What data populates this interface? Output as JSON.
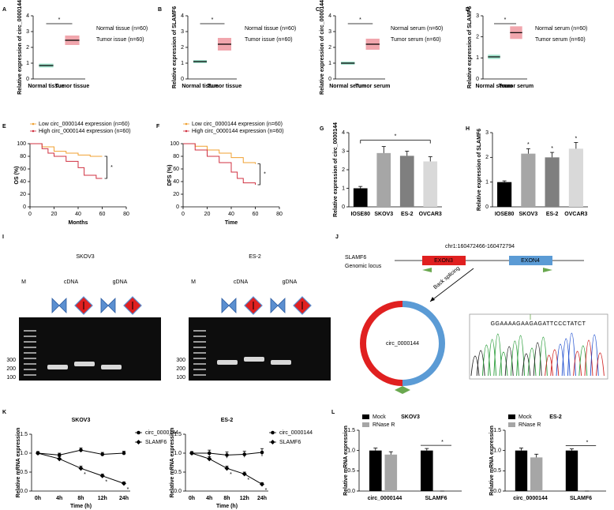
{
  "chart_data": [
    {
      "panel": "A",
      "type": "dot",
      "ylabel": "Relative expression of circ_0000144",
      "categories": [
        "Normal tissue",
        "Tumor tissue"
      ],
      "values": [
        0.85,
        2.45
      ],
      "sd": [
        0.12,
        0.3
      ],
      "colors": [
        "#2fbf8f",
        "#e03a4a"
      ],
      "legend": [
        "Normal tissue (n=60)",
        "Tumor issue (n=60)"
      ],
      "significance": "*",
      "ylim": [
        0,
        4
      ],
      "yticks": [
        0,
        1,
        2,
        3,
        4
      ]
    },
    {
      "panel": "B",
      "type": "dot",
      "ylabel": "Relative expression of SLAMF6",
      "categories": [
        "Normal tissue",
        "Tumor tissue"
      ],
      "values": [
        1.1,
        2.2
      ],
      "sd": [
        0.1,
        0.4
      ],
      "colors": [
        "#2fbf8f",
        "#e03a4a"
      ],
      "legend": [
        "Normal tissue (n=60)",
        "Tumor issue (n=60)"
      ],
      "significance": "*",
      "ylim": [
        0,
        4
      ],
      "yticks": [
        0,
        1,
        2,
        3,
        4
      ]
    },
    {
      "panel": "C",
      "type": "dot",
      "ylabel": "Relative expression of circ_0000144",
      "categories": [
        "Normal serum",
        "Tumor serum"
      ],
      "values": [
        1.0,
        2.2
      ],
      "sd": [
        0.1,
        0.35
      ],
      "colors": [
        "#2fbf8f",
        "#e03a4a"
      ],
      "legend": [
        "Normal serum (n=60)",
        "Tumor serum (n=60)"
      ],
      "significance": "*",
      "ylim": [
        0,
        4
      ],
      "yticks": [
        0,
        1,
        2,
        3,
        4
      ]
    },
    {
      "panel": "D",
      "type": "dot",
      "ylabel": "Relative expression of SLAMF6",
      "categories": [
        "Normal serum",
        "Tumor serum"
      ],
      "values": [
        1.05,
        2.2
      ],
      "sd": [
        0.1,
        0.3
      ],
      "colors": [
        "#2fbf8f",
        "#e03a4a"
      ],
      "legend": [
        "Normal serum (n=60)",
        "Tumor serum (n=60)"
      ],
      "significance": "*",
      "ylim": [
        0,
        3
      ],
      "yticks": [
        0,
        1,
        2,
        3
      ]
    },
    {
      "panel": "E",
      "type": "km",
      "xlabel": "Months",
      "ylabel": "OS (%)",
      "series": [
        {
          "name": "Low circ_0000144 expression (n=60)",
          "color": "#f0a030",
          "x": [
            0,
            10,
            20,
            30,
            40,
            50,
            60
          ],
          "values": [
            100,
            95,
            88,
            85,
            82,
            80,
            80
          ]
        },
        {
          "name": "High circ_0000144 expression (n=60)",
          "color": "#d03040",
          "x": [
            0,
            10,
            15,
            20,
            30,
            40,
            45,
            55,
            60
          ],
          "values": [
            100,
            92,
            85,
            80,
            72,
            62,
            50,
            45,
            45
          ]
        }
      ],
      "significance": "*",
      "xlim": [
        0,
        80
      ],
      "xticks": [
        0,
        20,
        40,
        60,
        80
      ],
      "ylim": [
        0,
        100
      ],
      "yticks": [
        0,
        20,
        40,
        60,
        80,
        100
      ]
    },
    {
      "panel": "F",
      "type": "km",
      "xlabel": "Time",
      "ylabel": "DFS (%)",
      "series": [
        {
          "name": "Low circ_0000144 expression (n=60)",
          "color": "#f0a030",
          "x": [
            0,
            10,
            20,
            30,
            40,
            50,
            60
          ],
          "values": [
            100,
            96,
            90,
            85,
            78,
            70,
            68
          ]
        },
        {
          "name": "High circ_0000144 expression (n=60)",
          "color": "#d03040",
          "x": [
            0,
            10,
            20,
            30,
            40,
            45,
            50,
            60
          ],
          "values": [
            100,
            90,
            80,
            70,
            55,
            45,
            38,
            35
          ]
        }
      ],
      "significance": "*",
      "xlim": [
        0,
        80
      ],
      "xticks": [
        0,
        20,
        40,
        60,
        80
      ],
      "ylim": [
        0,
        100
      ],
      "yticks": [
        0,
        20,
        40,
        60,
        80,
        100
      ]
    },
    {
      "panel": "G",
      "type": "bar",
      "ylabel": "Relative expression of circ_0000144",
      "categories": [
        "IOSE80",
        "SKOV3",
        "ES-2",
        "OVCAR3"
      ],
      "values": [
        1.0,
        2.9,
        2.75,
        2.45
      ],
      "errors": [
        0.1,
        0.35,
        0.25,
        0.25
      ],
      "colors": [
        "#000000",
        "#a6a6a6",
        "#7f7f7f",
        "#d9d9d9"
      ],
      "significance": "*",
      "ylim": [
        0,
        4
      ],
      "yticks": [
        0,
        1,
        2,
        3,
        4
      ]
    },
    {
      "panel": "H",
      "type": "bar",
      "ylabel": "Relative expression of SLAMF6",
      "categories": [
        "IOSE80",
        "SKOV3",
        "ES-2",
        "OVCAR3"
      ],
      "values": [
        1.0,
        2.15,
        2.0,
        2.35
      ],
      "errors": [
        0.05,
        0.2,
        0.2,
        0.25
      ],
      "colors": [
        "#000000",
        "#a6a6a6",
        "#7f7f7f",
        "#d9d9d9"
      ],
      "annotations": [
        "*",
        "*",
        "*"
      ],
      "ylim": [
        0,
        3
      ],
      "yticks": [
        0,
        1,
        2,
        3
      ]
    },
    {
      "panel": "K",
      "type": "line",
      "title": "SKOV3",
      "xlabel": "Time (h)",
      "ylabel": "Relative mRNA expression",
      "categories": [
        "0h",
        "4h",
        "8h",
        "12h",
        "24h"
      ],
      "series": [
        {
          "name": "circ_0000144",
          "color": "#000000",
          "marker": "circle",
          "values": [
            1.0,
            0.95,
            1.08,
            0.97,
            1.0
          ],
          "errors": [
            0.04,
            0.05,
            0.06,
            0.05,
            0.05
          ]
        },
        {
          "name": "SLAMF6",
          "color": "#000000",
          "marker": "diamond",
          "values": [
            1.0,
            0.85,
            0.6,
            0.4,
            0.2
          ],
          "errors": [
            0.04,
            0.06,
            0.06,
            0.05,
            0.04
          ]
        }
      ],
      "annotations": [
        "*",
        "*",
        "*"
      ],
      "ylim": [
        0,
        1.5
      ],
      "yticks": [
        {
          "value": 0,
          "label": "0.0"
        },
        {
          "value": 0.5,
          "label": "0.5"
        },
        {
          "value": 1,
          "label": "1.0"
        },
        {
          "value": 1.5,
          "label": "1.5"
        }
      ]
    },
    {
      "type": "line",
      "title": "ES-2",
      "xlabel": "Time (h)",
      "ylabel": "Relative mRNA expression",
      "categories": [
        "0h",
        "4h",
        "8h",
        "12h",
        "24h"
      ],
      "series": [
        {
          "name": "circ_0000144",
          "color": "#000000",
          "marker": "circle",
          "values": [
            1.0,
            1.0,
            0.95,
            0.97,
            1.02
          ],
          "errors": [
            0.04,
            0.08,
            0.08,
            0.08,
            0.1
          ]
        },
        {
          "name": "SLAMF6",
          "color": "#000000",
          "marker": "diamond",
          "values": [
            1.0,
            0.85,
            0.6,
            0.45,
            0.18
          ],
          "errors": [
            0.04,
            0.06,
            0.06,
            0.05,
            0.04
          ]
        }
      ],
      "annotations": [
        "*",
        "*",
        "*"
      ],
      "ylim": [
        0,
        1.5
      ],
      "yticks": [
        {
          "value": 0,
          "label": "0.0"
        },
        {
          "value": 0.5,
          "label": "0.5"
        },
        {
          "value": 1,
          "label": "1.0"
        },
        {
          "value": 1.5,
          "label": "1.5"
        }
      ]
    },
    {
      "panel": "L",
      "type": "bar",
      "title": "SKOV3",
      "ylabel": "Relative mRNA expression",
      "categories": [
        "circ_0000144",
        "SLAMF6"
      ],
      "series": [
        {
          "name": "Mock",
          "color": "#000000",
          "values": [
            1.0,
            1.0
          ],
          "errors": [
            0.06,
            0.05
          ]
        },
        {
          "name": "RNase R",
          "color": "#a6a6a6",
          "values": [
            0.9,
            0.0
          ],
          "errors": [
            0.07,
            0.0
          ]
        }
      ],
      "significance": "*",
      "ylim": [
        0,
        1.5
      ],
      "yticks": [
        {
          "value": 0,
          "label": "0.0"
        },
        {
          "value": 0.5,
          "label": "0.5"
        },
        {
          "value": 1,
          "label": "1.0"
        },
        {
          "value": 1.5,
          "label": "1.5"
        }
      ]
    },
    {
      "type": "bar",
      "title": "ES-2",
      "ylabel": "Relative mRNA expression",
      "categories": [
        "circ_0000144",
        "SLAMF6"
      ],
      "series": [
        {
          "name": "Mock",
          "color": "#000000",
          "values": [
            1.0,
            1.0
          ],
          "errors": [
            0.06,
            0.04
          ]
        },
        {
          "name": "RNase R",
          "color": "#a6a6a6",
          "values": [
            0.83,
            0.0
          ],
          "errors": [
            0.08,
            0.0
          ]
        }
      ],
      "significance": "*",
      "ylim": [
        0,
        1.5
      ],
      "yticks": [
        {
          "value": 0,
          "label": "0.0"
        },
        {
          "value": 0.5,
          "label": "0.5"
        },
        {
          "value": 1,
          "label": "1.0"
        },
        {
          "value": 1.5,
          "label": "1.5"
        }
      ]
    }
  ],
  "gel_panel": "I",
  "gel": [
    {
      "title": "SKOV3",
      "marker": "M",
      "lanes": [
        "cDNA",
        "gDNA"
      ],
      "sizes": [
        "300",
        "200",
        "100"
      ]
    },
    {
      "title": "ES-2",
      "marker": "M",
      "lanes": [
        "cDNA",
        "gDNA"
      ],
      "sizes": [
        "300",
        "200",
        "100"
      ]
    }
  ],
  "diagram": {
    "panel": "J",
    "locus": "chr1:160472466-160472794",
    "gene": "SLAMF6",
    "gene_sub": "Genomic locus",
    "exons": [
      "EXON3",
      "EXON4"
    ],
    "arrow": "Back splicing",
    "circle": "circ_0000144",
    "sequence": "GGAAAAGAAGAGATTCCCTATCT"
  }
}
